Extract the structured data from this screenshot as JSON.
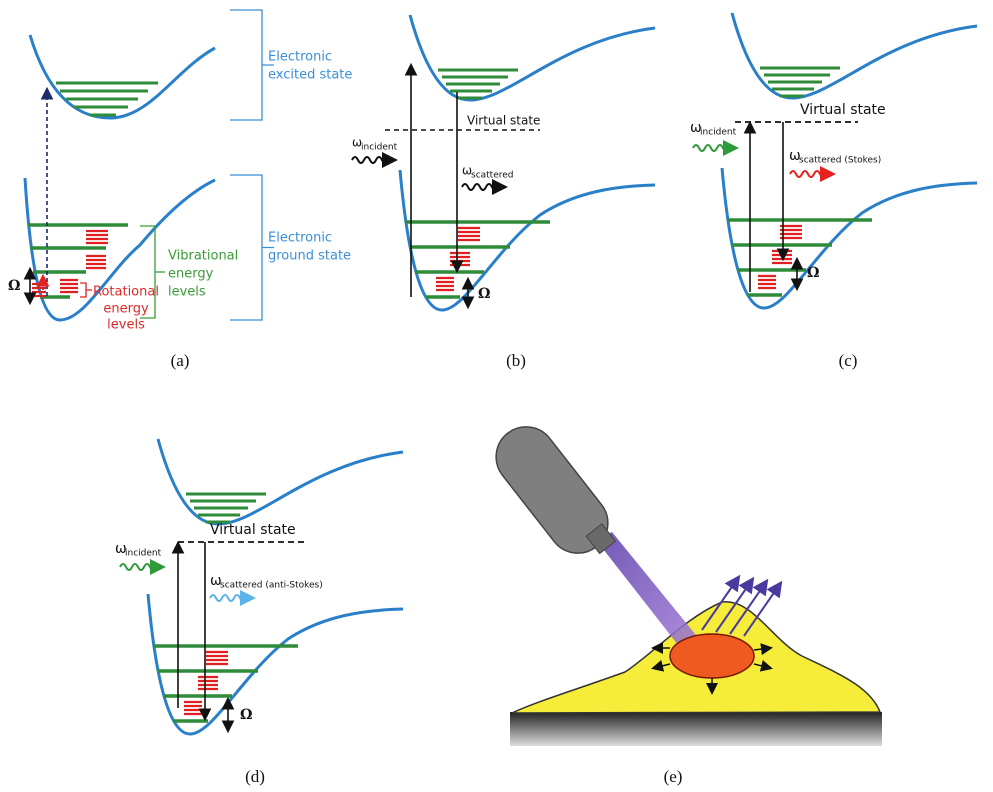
{
  "panels": [
    {
      "caption": "(a)",
      "excited_state": [
        "Electronic",
        "excited state"
      ],
      "ground_state": [
        "Electronic",
        "ground state"
      ],
      "vibrational": [
        "Vibrational",
        "energy",
        "levels"
      ],
      "rotational": [
        "Rotational",
        "energy",
        "levels"
      ],
      "omega": "Ω"
    },
    {
      "caption": "(b)",
      "virtual_state": "Virtual state",
      "incident": {
        "symbol": "ω",
        "subscript": "incident"
      },
      "scattered": {
        "symbol": "ω",
        "subscript": "scattered"
      },
      "omega": "Ω"
    },
    {
      "caption": "(c)",
      "virtual_state": "Virtual state",
      "incident": {
        "symbol": "ω",
        "subscript": "incident"
      },
      "scattered": {
        "symbol": "ω",
        "subscript": "scattered (Stokes)"
      },
      "omega": "Ω"
    },
    {
      "caption": "(d)",
      "virtual_state": "Virtual state",
      "incident": {
        "symbol": "ω",
        "subscript": "incident"
      },
      "scattered": {
        "symbol": "ω",
        "subscript": "scattered (anti-Stokes)"
      },
      "omega": "Ω"
    },
    {
      "caption": "(e)"
    }
  ]
}
